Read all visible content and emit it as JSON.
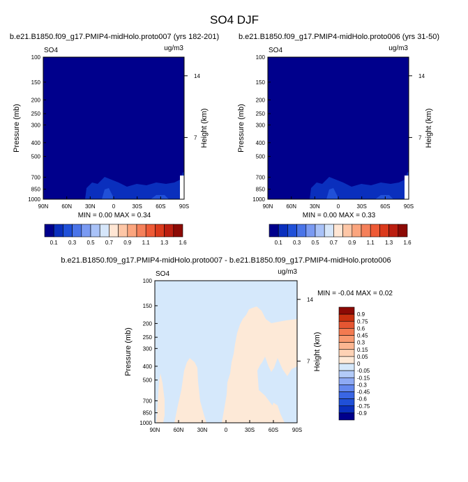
{
  "title": "SO4 DJF",
  "panels": [
    {
      "title": "b.e21.B1850.f09_g17.PMIP4-midHolo.proto007 (yrs 182-201)",
      "variable": "SO4",
      "units": "ug/m3",
      "min_max": "MIN =   0.00  MAX =   0.34"
    },
    {
      "title": "b.e21.B1850.f09_g17.PMIP4-midHolo.proto006 (yrs 31-50)",
      "variable": "SO4",
      "units": "ug/m3",
      "min_max": "MIN =   0.00  MAX =   0.33"
    },
    {
      "title": "b.e21.B1850.f09_g17.PMIP4-midHolo.proto007 - b.e21.B1850.f09_g17.PMIP4-midHolo.proto006",
      "variable": "SO4",
      "units": "ug/m3",
      "min_max": "MIN = -0.04  MAX =   0.02"
    }
  ],
  "colors": {
    "abs_scale": [
      "#00008c",
      "#0a2fbd",
      "#2050d8",
      "#4a74e8",
      "#7a9af2",
      "#a9c2f8",
      "#d6e6fa",
      "#ffe6d4",
      "#fdc6a6",
      "#fba57e",
      "#f5805a",
      "#ee5a36",
      "#db3a1c",
      "#bb1e10",
      "#8c0a05"
    ],
    "diff_scale": [
      "#00008c",
      "#0a2fbd",
      "#2050d8",
      "#3a66e4",
      "#6488ee",
      "#8eaaf4",
      "#b3cbf8",
      "#d5e8fb",
      "#fde9d7",
      "#fdd2b5",
      "#fcb691",
      "#f99a70",
      "#f37a50",
      "#e55632",
      "#c8300f",
      "#8c0a05"
    ]
  },
  "chart_data": [
    {
      "type": "heatmap",
      "title": "b.e21.B1850.f09_g17.PMIP4-midHolo.proto007 (yrs 182-201)",
      "variable": "SO4",
      "units": "ug/m3",
      "xlabel": "",
      "ylabel": "Pressure (mb)",
      "y2label": "Height (km)",
      "x_ticks": [
        "90N",
        "60N",
        "30N",
        "0",
        "30S",
        "60S",
        "90S"
      ],
      "x_range": [
        90,
        -90
      ],
      "y_ticks": [
        100,
        150,
        200,
        250,
        300,
        400,
        500,
        700,
        850,
        1000
      ],
      "y_range": [
        100,
        1000
      ],
      "y2_ticks": [
        14,
        7
      ],
      "colorbar_labels": [
        "0.1",
        "0.3",
        "0.5",
        "0.7",
        "0.9",
        "1.1",
        "1.3",
        "1.6"
      ],
      "min": 0.0,
      "max": 0.34
    },
    {
      "type": "heatmap",
      "title": "b.e21.B1850.f09_g17.PMIP4-midHolo.proto006 (yrs 31-50)",
      "variable": "SO4",
      "units": "ug/m3",
      "xlabel": "",
      "ylabel": "Pressure (mb)",
      "y2label": "Height (km)",
      "x_ticks": [
        "90N",
        "60N",
        "30N",
        "0",
        "30S",
        "60S",
        "90S"
      ],
      "x_range": [
        90,
        -90
      ],
      "y_ticks": [
        100,
        150,
        200,
        250,
        300,
        400,
        500,
        700,
        850,
        1000
      ],
      "y_range": [
        100,
        1000
      ],
      "y2_ticks": [
        14,
        7
      ],
      "colorbar_labels": [
        "0.1",
        "0.3",
        "0.5",
        "0.7",
        "0.9",
        "1.1",
        "1.3",
        "1.6"
      ],
      "min": 0.0,
      "max": 0.33
    },
    {
      "type": "heatmap",
      "title": "b.e21.B1850.f09_g17.PMIP4-midHolo.proto007 - b.e21.B1850.f09_g17.PMIP4-midHolo.proto006",
      "variable": "SO4",
      "units": "ug/m3",
      "xlabel": "",
      "ylabel": "Pressure (mb)",
      "y2label": "Height (km)",
      "x_ticks": [
        "90N",
        "60N",
        "30N",
        "0",
        "30S",
        "60S",
        "90S"
      ],
      "x_range": [
        90,
        -90
      ],
      "y_ticks": [
        100,
        150,
        200,
        250,
        300,
        400,
        500,
        700,
        850,
        1000
      ],
      "y_range": [
        100,
        1000
      ],
      "y2_ticks": [
        14,
        7
      ],
      "colorbar_labels": [
        "0.9",
        "0.75",
        "0.6",
        "0.45",
        "0.3",
        "0.15",
        "0.05",
        "0",
        "-0.05",
        "-0.15",
        "-0.3",
        "-0.45",
        "-0.6",
        "-0.75",
        "-0.9"
      ],
      "min": -0.04,
      "max": 0.02
    }
  ]
}
